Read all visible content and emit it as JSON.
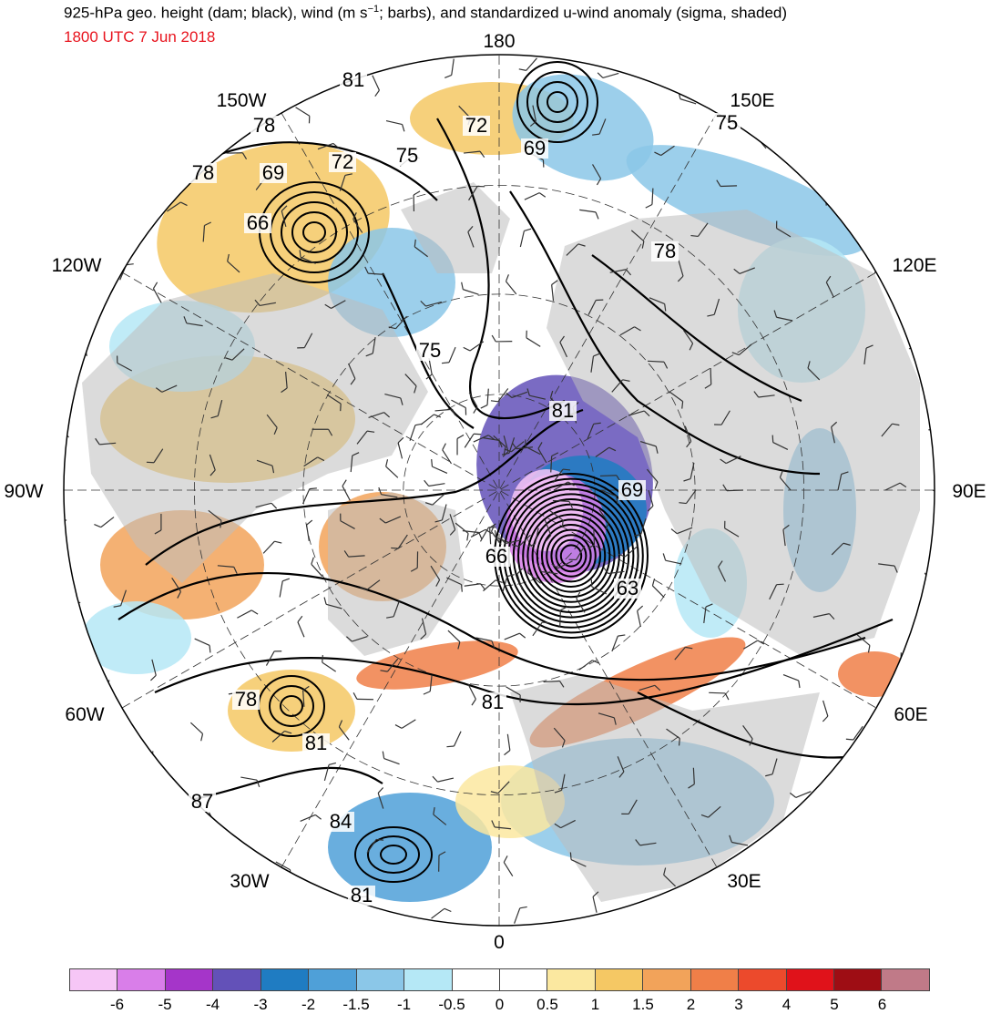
{
  "header": {
    "title_pre": "925-hPa geo. height (dam; black), wind (m s",
    "title_sup": "−1",
    "title_post": "; barbs), and standardized u-wind anomaly (sigma, shaded)",
    "valid_time": "1800 UTC 7 Jun 2018"
  },
  "map": {
    "projection": "north-polar-stereographic",
    "longitude_labels": {
      "lon_180": "180",
      "lon_150e": "150E",
      "lon_120e": "120E",
      "lon_90e": "90E",
      "lon_60e": "60E",
      "lon_30e": "30E",
      "lon_0": "0",
      "lon_30w": "30W",
      "lon_60w": "60W",
      "lon_90w": "90W",
      "lon_120w": "120W",
      "lon_150w": "150W"
    },
    "height_contour_labels": [
      "81",
      "78",
      "78",
      "69",
      "72",
      "75",
      "66",
      "72",
      "69",
      "75",
      "78",
      "75",
      "81",
      "69",
      "66",
      "63",
      "81",
      "78",
      "81",
      "87",
      "84",
      "81"
    ],
    "colors": {
      "land": "#bdbdbd",
      "ocean": "#ffffff",
      "contour": "#000000",
      "graticule": "#333333"
    }
  },
  "colorbar": {
    "labels": [
      "-6",
      "-5",
      "-4",
      "-3",
      "-2",
      "-1.5",
      "-1",
      "-0.5",
      "0",
      "0.5",
      "1",
      "1.5",
      "2",
      "3",
      "4",
      "5",
      "6"
    ],
    "colors": [
      "#f6c6f6",
      "#d97ee9",
      "#a535c9",
      "#6351b8",
      "#1f7cc2",
      "#4fa0d8",
      "#8bc7e8",
      "#b5e8f6",
      "#ffffff",
      "#ffffff",
      "#fbe8a0",
      "#f5c864",
      "#f2a35a",
      "#f07f48",
      "#ec4a2c",
      "#e0121a",
      "#9e0d14",
      "#c07a88"
    ]
  }
}
